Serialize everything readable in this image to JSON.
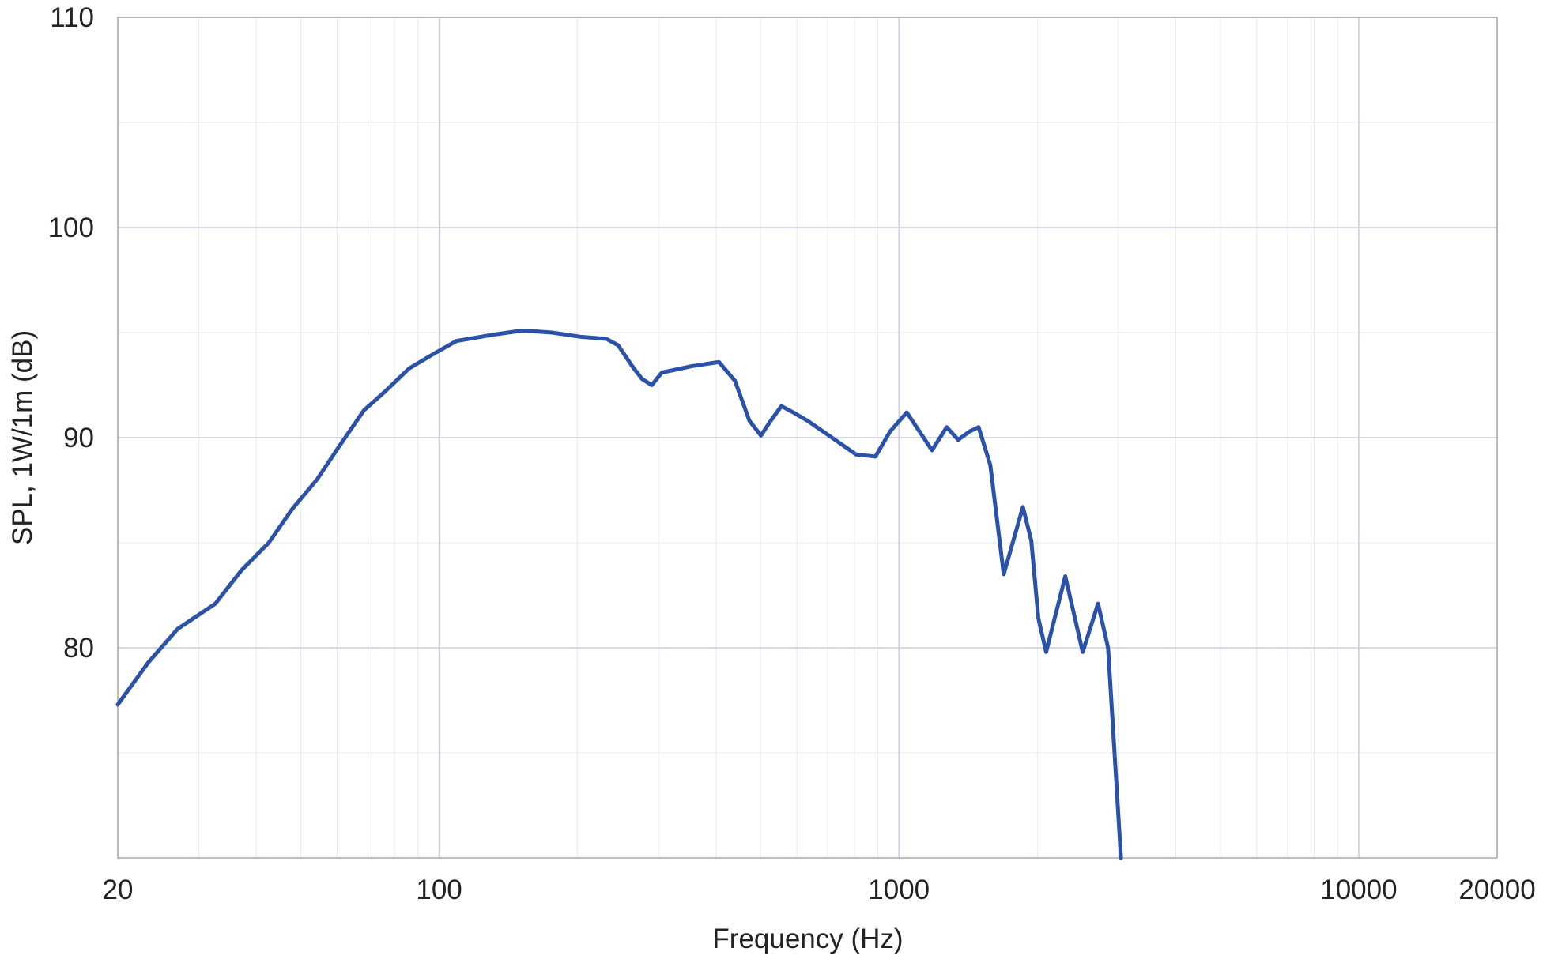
{
  "chart_data": {
    "type": "line",
    "x_label": "Frequency (Hz)",
    "y_label": "SPL, 1W/1m (dB)",
    "x": [
      20,
      23.3,
      27.0,
      32.6,
      37.2,
      42.6,
      47.9,
      54.2,
      59.8,
      68.6,
      76.3,
      86.1,
      97.5,
      109,
      131,
      152,
      176,
      203,
      231,
      245,
      263,
      276,
      290,
      305,
      321,
      354,
      406,
      440,
      473,
      501,
      526,
      555,
      589,
      633,
      715,
      807,
      889,
      957,
      1040,
      1180,
      1270,
      1345,
      1426,
      1490,
      1580,
      1690,
      1860,
      1940,
      2010,
      2090,
      2300,
      2510,
      2710,
      2850,
      3040
    ],
    "series": [
      {
        "name": "SPL",
        "color": "#2a52a8",
        "values": [
          77.3,
          79.3,
          80.9,
          82.1,
          83.7,
          85.0,
          86.6,
          88.0,
          89.4,
          91.3,
          92.2,
          93.3,
          94.0,
          94.6,
          94.9,
          95.1,
          95.0,
          94.8,
          94.7,
          94.4,
          93.4,
          92.8,
          92.5,
          93.1,
          93.2,
          93.4,
          93.6,
          92.7,
          90.8,
          90.1,
          90.8,
          91.5,
          91.2,
          90.8,
          90.0,
          89.2,
          89.1,
          90.3,
          91.2,
          89.4,
          90.5,
          89.9,
          90.3,
          90.5,
          88.7,
          83.5,
          86.7,
          85.1,
          81.4,
          79.8,
          83.4,
          79.8,
          82.1,
          80.0,
          70.0
        ]
      }
    ],
    "xlim": [
      20,
      20000
    ],
    "xticks": [
      20,
      100,
      1000,
      10000,
      20000
    ],
    "xscale": "log",
    "ylim": [
      70,
      110
    ],
    "yticks": [
      80,
      90,
      100,
      110
    ],
    "grid": true,
    "grid_color": "#c9cde2"
  }
}
